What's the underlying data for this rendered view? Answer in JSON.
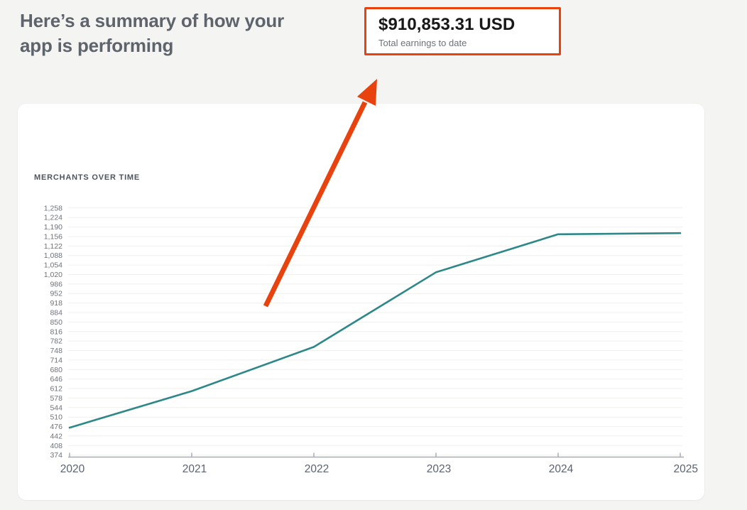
{
  "heading": "Here’s a summary of how your\napp is performing",
  "earnings": {
    "amount": "$910,853.31 USD",
    "caption": "Total earnings to date"
  },
  "annotation_arrow": {
    "description": "large orange arrow pointing from the chart area up to the total earnings box",
    "color": "#e8430e"
  },
  "colors": {
    "accent": "#e8430e",
    "page_bg": "#f4f4f2",
    "card_bg": "#ffffff",
    "heading_text": "#5e646b",
    "amount_text": "#16181a",
    "caption_text": "#6c7277"
  },
  "chart_data": {
    "type": "line",
    "title": "MERCHANTS OVER TIME",
    "xlabel": "",
    "ylabel": "",
    "x": [
      "2020",
      "2021",
      "2022",
      "2023",
      "2024",
      "2025"
    ],
    "series": [
      {
        "name": "Merchants",
        "values": [
          472,
          603,
          761,
          1028,
          1164,
          1168
        ]
      }
    ],
    "ylim": [
      374,
      1258
    ],
    "y_tick_step": 34,
    "y_ticks": [
      1258,
      1224,
      1190,
      1156,
      1122,
      1088,
      1054,
      1020,
      986,
      952,
      918,
      884,
      850,
      816,
      782,
      748,
      714,
      680,
      646,
      612,
      578,
      544,
      510,
      476,
      442,
      408,
      374
    ],
    "grid": true,
    "legend": false,
    "line_color": "#2e8789",
    "grid_color": "#efefee",
    "axis_color": "#a8adb3",
    "tick_label_color": "#6d737a",
    "x_label_color": "#5b6370"
  }
}
